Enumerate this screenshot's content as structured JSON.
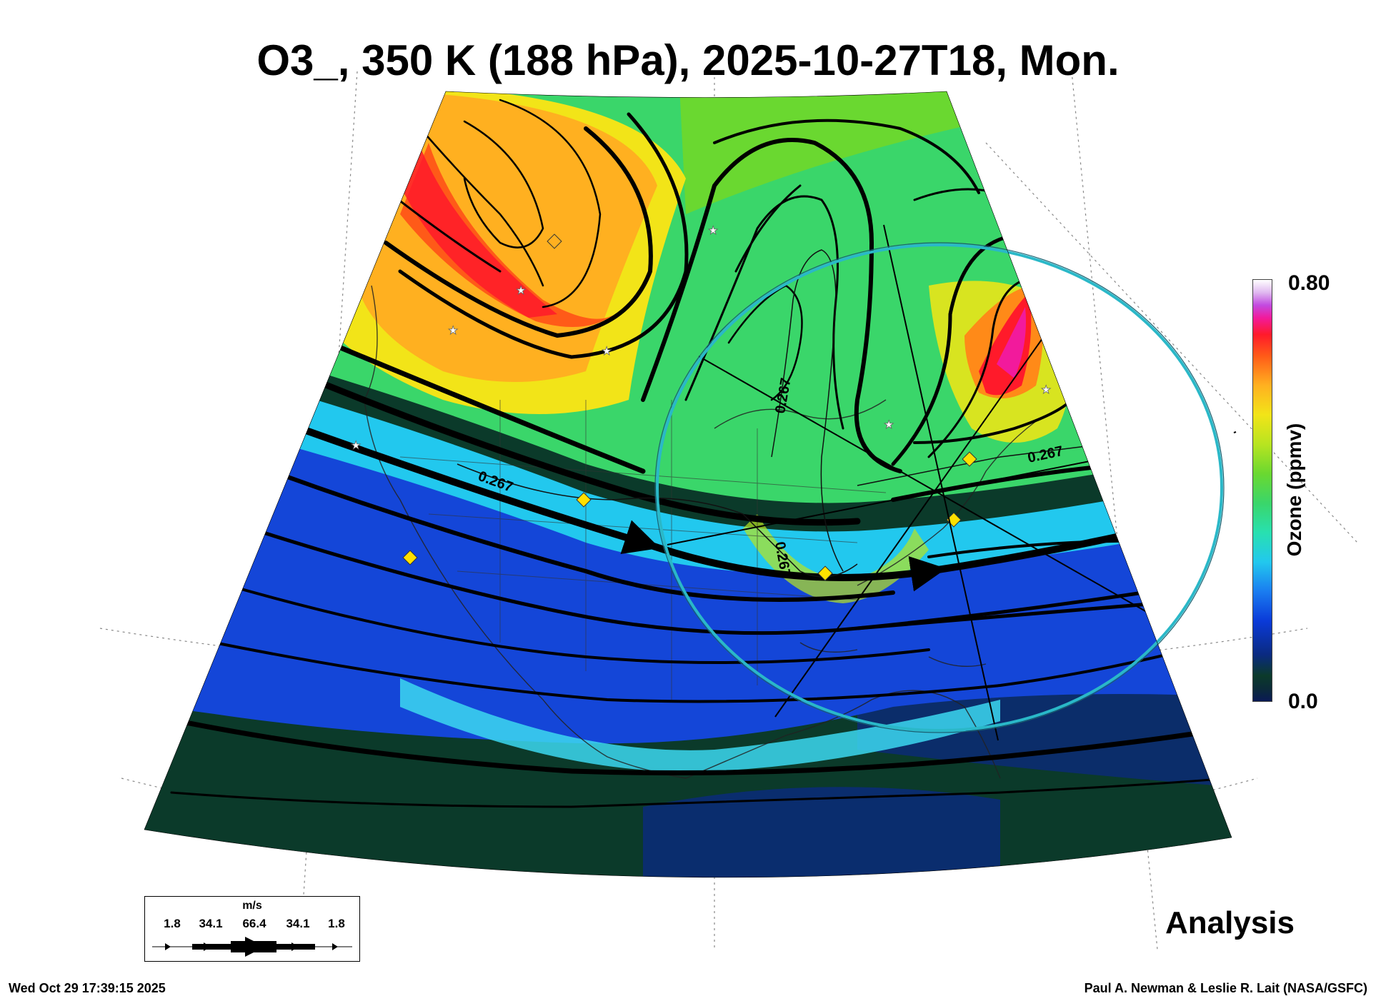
{
  "title": "O3_, 350 K (188 hPa), 2025-10-27T18, Mon.",
  "colorbar": {
    "label": "Ozone (ppmv)",
    "max_label": "0.80",
    "min_label": "0.0",
    "range": [
      0.0,
      0.8
    ]
  },
  "contour_label": "0.267",
  "panel_label": "Analysis",
  "wind_legend": {
    "units": "m/s",
    "values": [
      "1.8",
      "34.1",
      "66.4",
      "34.1",
      "1.8"
    ]
  },
  "timestamp": "Wed Oct 29 17:39:15 2025",
  "credit": "Paul A. Newman & Leslie R. Lait (NASA/GSFC)",
  "colors": {
    "low_ozone": "#0b3a2a",
    "tropical_blue": "#1446d8",
    "cyan": "#22c8ee",
    "green": "#3ad66a",
    "yellow": "#f2e418",
    "orange": "#ffa020",
    "red": "#ff1a2a",
    "magenta": "#f21a9c",
    "highlight_circle": "#2ab8c8",
    "station_marker": "#ffe000"
  }
}
